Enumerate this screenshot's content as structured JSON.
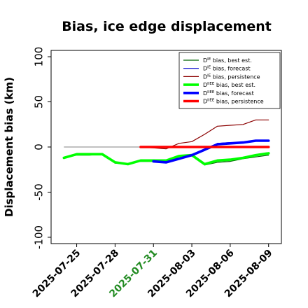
{
  "chart_data": {
    "type": "line",
    "title": "Bias, ice edge displacement",
    "xlabel": "",
    "ylabel": "Displacement bias (km)",
    "ylim": [
      -107,
      107
    ],
    "yticks": [
      -100,
      -50,
      0,
      50,
      100
    ],
    "xlim": [
      "2025-07-23",
      "2025-08-10"
    ],
    "xticks": [
      {
        "date": "2025-07-25",
        "label": "2025-07-25",
        "color": "#000000"
      },
      {
        "date": "2025-07-28",
        "label": "2025-07-28",
        "color": "#000000"
      },
      {
        "date": "2025-07-31",
        "label": "2025-07-31",
        "color": "#228b22"
      },
      {
        "date": "2025-08-03",
        "label": "2025-08-03",
        "color": "#000000"
      },
      {
        "date": "2025-08-06",
        "label": "2025-08-06",
        "color": "#000000"
      },
      {
        "date": "2025-08-09",
        "label": "2025-08-09",
        "color": "#000000"
      }
    ],
    "reference_line": {
      "y": 0,
      "from": "2025-07-24",
      "to": "2025-08-09",
      "color": "#808080"
    },
    "legend_position": "top-right",
    "series": [
      {
        "name": "D^IE bias, best est.",
        "legend_main": "D",
        "legend_sup": "IE",
        "legend_rest": " bias, best est.",
        "color": "#006400",
        "width": 1.2,
        "points": [
          [
            "2025-07-24",
            -12
          ],
          [
            "2025-07-25",
            -9
          ],
          [
            "2025-07-26",
            -9
          ],
          [
            "2025-07-27",
            -8
          ],
          [
            "2025-07-28",
            -18
          ],
          [
            "2025-07-29",
            -19
          ],
          [
            "2025-07-30",
            -16
          ],
          [
            "2025-07-31",
            -16
          ],
          [
            "2025-08-01",
            -16
          ],
          [
            "2025-08-02",
            -10
          ],
          [
            "2025-08-03",
            -10
          ],
          [
            "2025-08-04",
            -20
          ],
          [
            "2025-08-05",
            -17
          ],
          [
            "2025-08-06",
            -16
          ],
          [
            "2025-08-07",
            -13
          ],
          [
            "2025-08-08",
            -11
          ],
          [
            "2025-08-09",
            -9
          ]
        ]
      },
      {
        "name": "D^IE bias, forecast",
        "legend_main": "D",
        "legend_sup": "IE",
        "legend_rest": " bias, forecast",
        "color": "#0000cd",
        "width": 1.2,
        "points": [
          [
            "2025-07-31",
            -16
          ],
          [
            "2025-08-01",
            -17
          ],
          [
            "2025-08-02",
            -13
          ],
          [
            "2025-08-03",
            -10
          ],
          [
            "2025-08-04",
            -4
          ],
          [
            "2025-08-05",
            4
          ],
          [
            "2025-08-06",
            5
          ],
          [
            "2025-08-07",
            5
          ],
          [
            "2025-08-08",
            7
          ],
          [
            "2025-08-09",
            7
          ]
        ]
      },
      {
        "name": "D^IE bias, persistence",
        "legend_main": "D",
        "legend_sup": "IE",
        "legend_rest": " bias, persistence",
        "color": "#8b0000",
        "width": 1.2,
        "points": [
          [
            "2025-07-30",
            0
          ],
          [
            "2025-07-31",
            -1
          ],
          [
            "2025-08-01",
            -2
          ],
          [
            "2025-08-02",
            4
          ],
          [
            "2025-08-03",
            6
          ],
          [
            "2025-08-04",
            14
          ],
          [
            "2025-08-05",
            23
          ],
          [
            "2025-08-06",
            24
          ],
          [
            "2025-08-07",
            25
          ],
          [
            "2025-08-08",
            30
          ],
          [
            "2025-08-09",
            30
          ]
        ]
      },
      {
        "name": "D^IIEE bias, best est.",
        "legend_main": "D",
        "legend_sup": "IIEE",
        "legend_rest": " bias, best est.",
        "color": "#00ff00",
        "width": 3.6,
        "points": [
          [
            "2025-07-24",
            -12
          ],
          [
            "2025-07-25",
            -8
          ],
          [
            "2025-07-26",
            -8
          ],
          [
            "2025-07-27",
            -8
          ],
          [
            "2025-07-28",
            -17
          ],
          [
            "2025-07-29",
            -19
          ],
          [
            "2025-07-30",
            -15
          ],
          [
            "2025-07-31",
            -15
          ],
          [
            "2025-08-01",
            -15
          ],
          [
            "2025-08-02",
            -10
          ],
          [
            "2025-08-03",
            -9
          ],
          [
            "2025-08-04",
            -19
          ],
          [
            "2025-08-05",
            -15
          ],
          [
            "2025-08-06",
            -14
          ],
          [
            "2025-08-07",
            -12
          ],
          [
            "2025-08-08",
            -9
          ],
          [
            "2025-08-09",
            -7
          ]
        ]
      },
      {
        "name": "D^IIEE bias, forecast",
        "legend_main": "D",
        "legend_sup": "IIEE",
        "legend_rest": " bias, forecast",
        "color": "#0000ff",
        "width": 3.6,
        "points": [
          [
            "2025-07-31",
            -16
          ],
          [
            "2025-08-01",
            -17
          ],
          [
            "2025-08-02",
            -13
          ],
          [
            "2025-08-03",
            -9
          ],
          [
            "2025-08-04",
            -3
          ],
          [
            "2025-08-05",
            3
          ],
          [
            "2025-08-06",
            4
          ],
          [
            "2025-08-07",
            5
          ],
          [
            "2025-08-08",
            7
          ],
          [
            "2025-08-09",
            7
          ]
        ]
      },
      {
        "name": "D^IIEE bias, persistence",
        "legend_main": "D",
        "legend_sup": "IIEE",
        "legend_rest": " bias, persistence",
        "color": "#ff0000",
        "width": 3.6,
        "points": [
          [
            "2025-07-30",
            0
          ],
          [
            "2025-07-31",
            0
          ],
          [
            "2025-08-01",
            0
          ],
          [
            "2025-08-02",
            0
          ],
          [
            "2025-08-03",
            0
          ],
          [
            "2025-08-04",
            0
          ],
          [
            "2025-08-05",
            0
          ],
          [
            "2025-08-06",
            0
          ],
          [
            "2025-08-07",
            0
          ],
          [
            "2025-08-08",
            0
          ],
          [
            "2025-08-09",
            0
          ]
        ]
      }
    ]
  }
}
